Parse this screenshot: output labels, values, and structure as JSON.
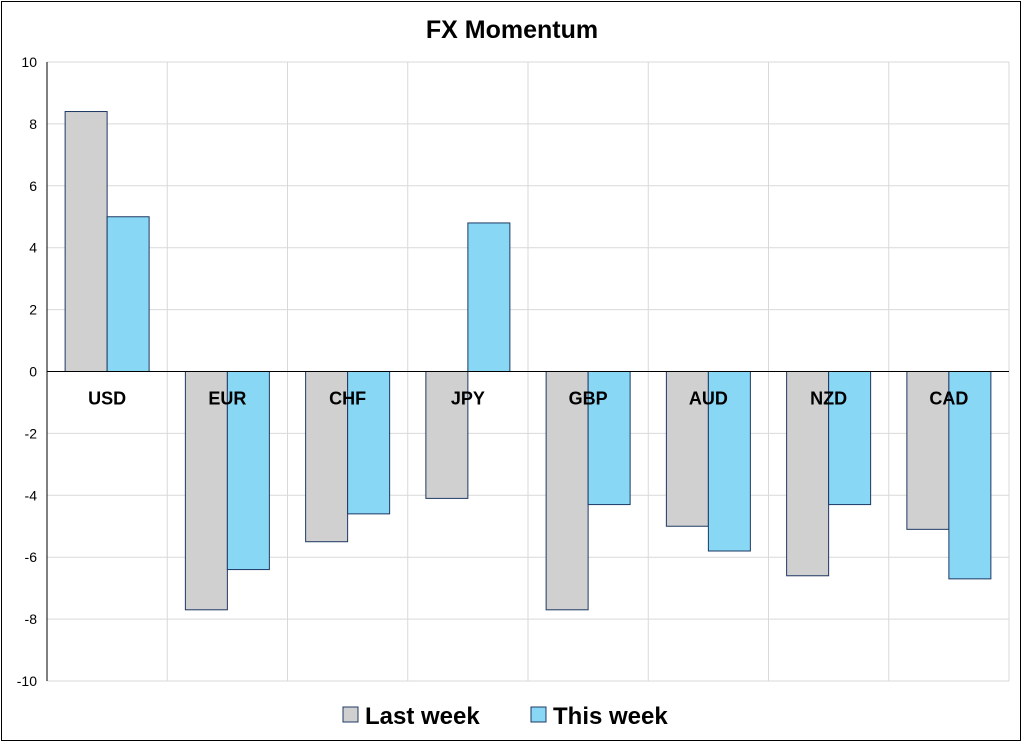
{
  "chart_data": {
    "type": "bar",
    "title": "FX Momentum",
    "xlabel": "",
    "ylabel": "",
    "categories": [
      "USD",
      "EUR",
      "CHF",
      "JPY",
      "GBP",
      "AUD",
      "NZD",
      "CAD"
    ],
    "series": [
      {
        "name": "Last week",
        "color": "#d0d0d0",
        "values": [
          8.4,
          -7.7,
          -5.5,
          -4.1,
          -7.7,
          -5.0,
          -6.6,
          -5.1
        ]
      },
      {
        "name": "This week",
        "color": "#87d7f5",
        "values": [
          5.0,
          -6.4,
          -4.6,
          4.8,
          -4.3,
          -5.8,
          -4.3,
          -6.7
        ]
      }
    ],
    "ylim": [
      -10,
      10
    ],
    "yticks": [
      10,
      8,
      6,
      4,
      2,
      0,
      -2,
      -4,
      -6,
      -8,
      -10
    ],
    "grid": true,
    "legend_position": "bottom",
    "bar_outline_color": "#1f3864",
    "grid_color": "#d9d9d9"
  }
}
